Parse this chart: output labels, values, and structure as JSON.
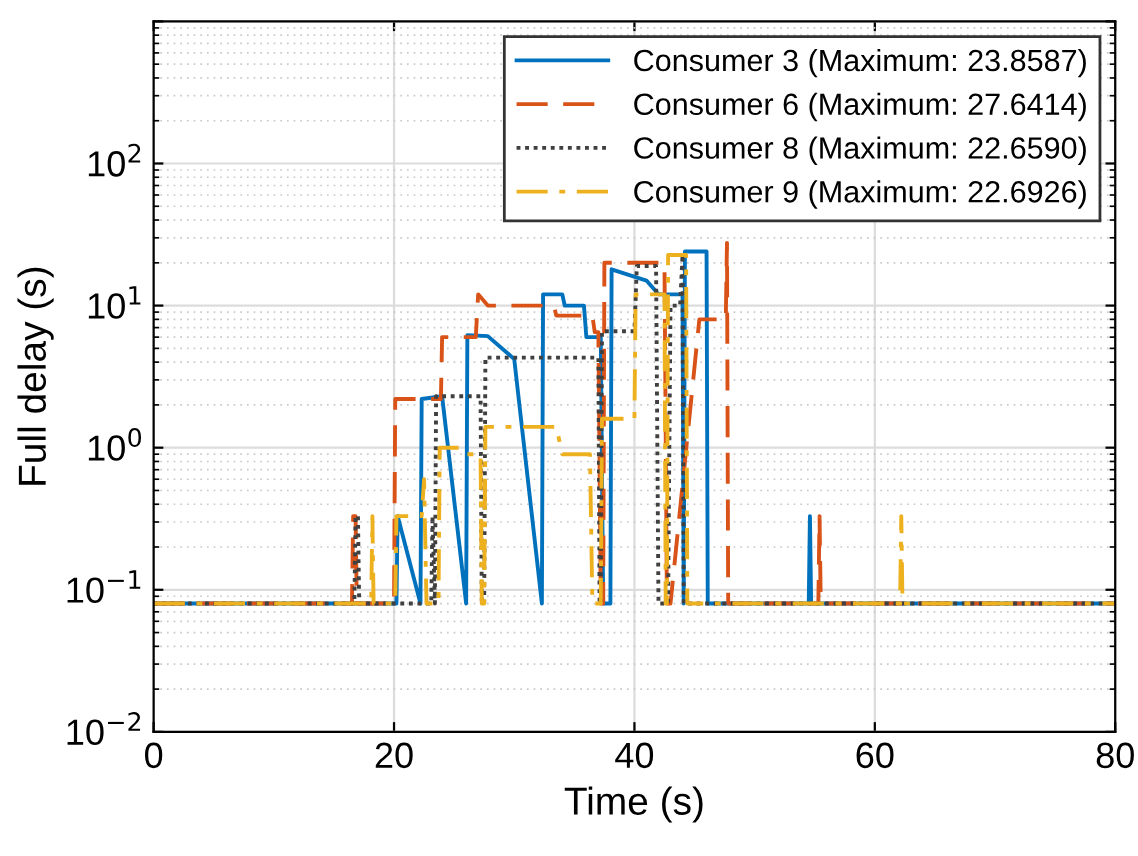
{
  "chart_data": {
    "type": "line",
    "xlabel": "Time (s)",
    "ylabel": "Full delay (s)",
    "log": "y",
    "xlim": [
      0,
      80
    ],
    "xticks": [
      0,
      20,
      40,
      60,
      80
    ],
    "ylim": [
      0.01,
      1000
    ],
    "yticks": [
      {
        "value": 0.01,
        "label": "10$^{−2}$"
      },
      {
        "value": 0.1,
        "label": "10$^{−1}$"
      },
      {
        "value": 1,
        "label": "10$^{0}$"
      },
      {
        "value": 10,
        "label": "10$^{1}$"
      },
      {
        "value": 100,
        "label": "10$^{2}$"
      },
      {
        "value": 1000,
        "label": null
      }
    ],
    "grid": true,
    "legend": "top right",
    "marker": "none",
    "series": [
      {
        "name": "Consumer 3 (Maximum: 23.8587)",
        "color": "#0072bd",
        "line_style": "solid",
        "x": [
          0,
          20.2,
          20.3,
          22.2,
          22.3,
          24.0,
          26.0,
          26.1,
          27.8,
          30.0,
          32.3,
          32.4,
          34.0,
          34.2,
          35.8,
          36.0,
          37.2,
          37.4,
          38.0,
          38.1,
          41.0,
          42.0,
          44.0,
          44.1,
          44.2,
          46.0,
          46.1,
          54.5,
          54.6,
          54.7,
          80
        ],
        "values": [
          0.08,
          0.08,
          0.33,
          0.08,
          2.2,
          2.3,
          0.08,
          6.2,
          6.1,
          4.2,
          0.08,
          12,
          12,
          10,
          10,
          6,
          6,
          0.08,
          0.08,
          18,
          15,
          12,
          12,
          0.08,
          24,
          24,
          0.08,
          0.08,
          0.33,
          0.08,
          0.08
        ]
      },
      {
        "name": "Consumer 6 (Maximum: 27.6414)",
        "color": "#d95319",
        "line_style": "dashed",
        "x": [
          0,
          16.5,
          16.6,
          16.8,
          16.9,
          20.0,
          20.1,
          23.9,
          24.0,
          26.8,
          27.0,
          27.8,
          33.3,
          33.5,
          36.5,
          36.7,
          37.0,
          37.2,
          37.4,
          37.5,
          42.5,
          42.7,
          43.0,
          45.4,
          45.6,
          47.6,
          47.7,
          47.8,
          55.3,
          55.4,
          55.5,
          80
        ],
        "values": [
          0.08,
          0.08,
          0.33,
          0.33,
          0.08,
          0.08,
          2.2,
          2.2,
          6,
          6,
          12,
          10,
          10,
          8.5,
          8.5,
          6.5,
          6.5,
          0.08,
          0.08,
          20,
          20,
          0.08,
          0.08,
          8,
          8,
          8,
          27.6414,
          0.08,
          0.08,
          0.33,
          0.08,
          0.08
        ]
      },
      {
        "name": "Consumer 8 (Maximum: 22.6590)",
        "color": "#404040",
        "line_style": "dotted",
        "x": [
          0,
          16.7,
          16.8,
          17.0,
          17.1,
          23.1,
          23.2,
          23.4,
          23.5,
          27.2,
          27.3,
          27.5,
          27.6,
          37.0,
          37.1,
          37.2,
          37.3,
          40.0,
          40.2,
          41.8,
          42.0,
          42.8,
          43.0,
          43.8,
          44.0,
          44.1,
          80
        ],
        "values": [
          0.08,
          0.08,
          0.33,
          0.33,
          0.08,
          0.08,
          0.33,
          0.08,
          2.3,
          2.3,
          0.08,
          0.08,
          4.3,
          4.3,
          0.08,
          0.08,
          6.6,
          6.6,
          19,
          19,
          0.08,
          0.08,
          10,
          10,
          22.659,
          0.08,
          0.08
        ]
      },
      {
        "name": "Consumer 9 (Maximum: 22.6926)",
        "color": "#edb120",
        "line_style": "dashdot",
        "x": [
          0,
          18.1,
          18.2,
          18.3,
          20.1,
          20.2,
          22.3,
          22.5,
          22.7,
          23.7,
          23.8,
          25.5,
          26.0,
          27.2,
          27.3,
          27.5,
          27.6,
          33.5,
          34.0,
          36.3,
          36.5,
          37.2,
          37.3,
          40.0,
          40.1,
          42.5,
          42.6,
          42.7,
          42.8,
          44.3,
          44.4,
          62.1,
          62.2,
          62.3,
          80
        ],
        "values": [
          0.08,
          0.08,
          0.33,
          0.08,
          0.08,
          0.33,
          0.33,
          0.6,
          0.08,
          0.08,
          1.0,
          1.0,
          0.9,
          0.9,
          0.08,
          0.08,
          1.4,
          1.4,
          0.9,
          0.9,
          0.08,
          0.08,
          1.6,
          1.6,
          12,
          12,
          0.08,
          0.08,
          22.6926,
          22.6926,
          0.08,
          0.08,
          0.33,
          0.08,
          0.08
        ]
      }
    ]
  }
}
